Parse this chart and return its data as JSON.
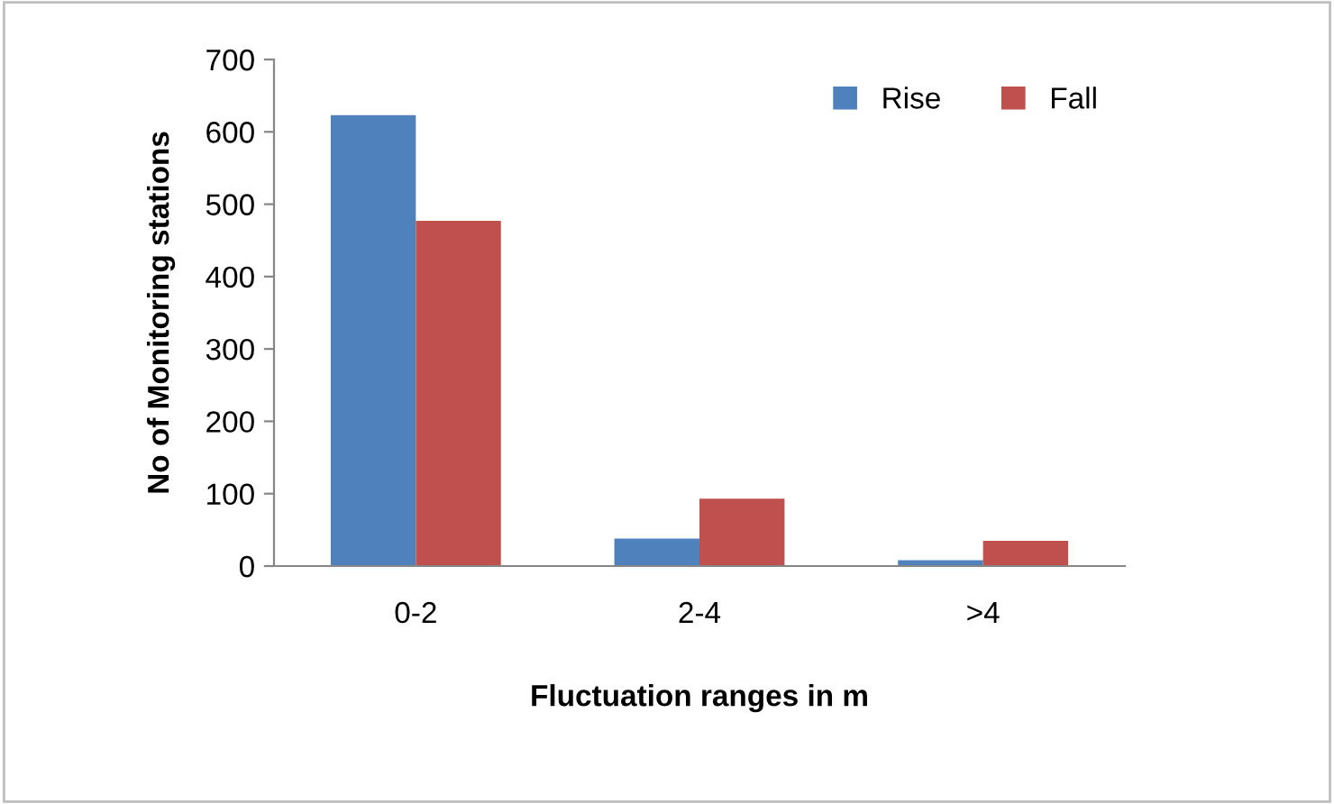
{
  "chart_data": {
    "type": "bar",
    "xlabel": "Fluctuation ranges in m",
    "ylabel": "No of Monitoring stations",
    "categories": [
      "0-2",
      "2-4",
      ">4"
    ],
    "series": [
      {
        "name": "Rise",
        "color": "#4f81bd",
        "values": [
          623,
          38,
          8
        ]
      },
      {
        "name": "Fall",
        "color": "#c0504d",
        "values": [
          477,
          93,
          35
        ]
      }
    ],
    "ylim": [
      0,
      700
    ],
    "yticks": [
      0,
      100,
      200,
      300,
      400,
      500,
      600,
      700
    ],
    "legend": "top right",
    "grid": false
  }
}
